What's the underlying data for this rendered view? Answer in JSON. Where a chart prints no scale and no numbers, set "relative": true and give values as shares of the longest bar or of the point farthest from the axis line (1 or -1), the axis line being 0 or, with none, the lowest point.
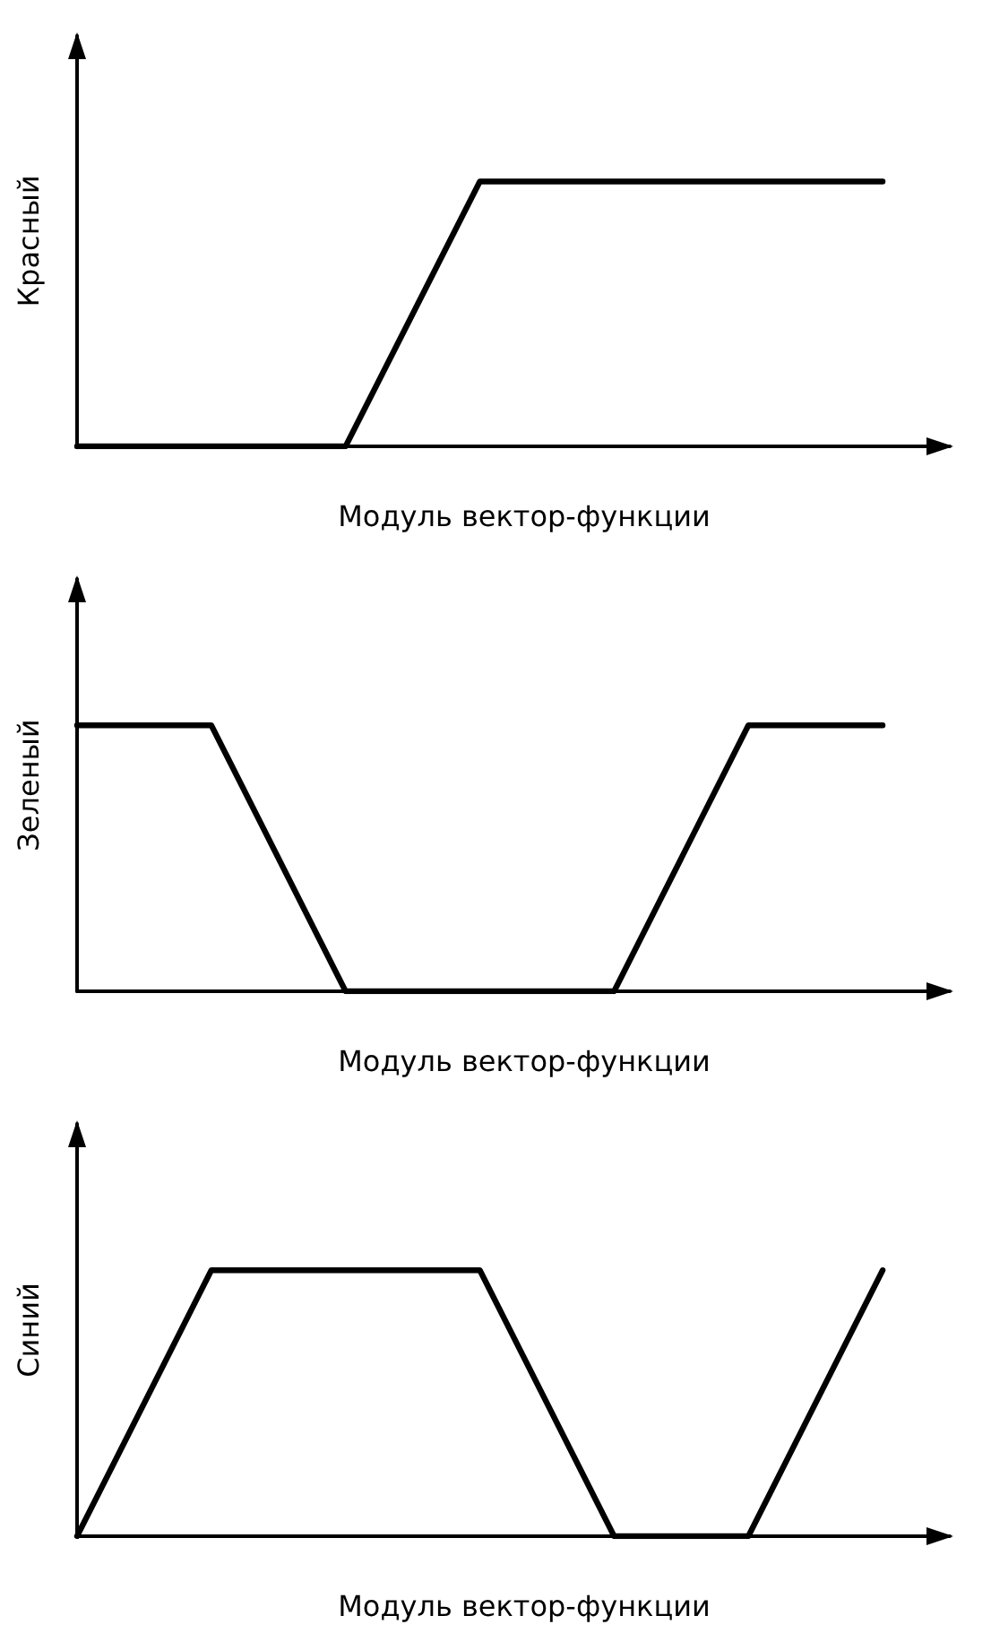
{
  "chart_data": [
    {
      "type": "line",
      "relative": true,
      "ylabel": "Красный",
      "xlabel": "Модуль вектор-функции",
      "categories": [
        null,
        null,
        null,
        null,
        null,
        null,
        null
      ],
      "series": [
        {
          "color": "#000000",
          "values": [
            0,
            0,
            0,
            1,
            1,
            1,
            1
          ]
        }
      ],
      "marker": "none",
      "grid": false
    },
    {
      "type": "line",
      "relative": true,
      "ylabel": "Зеленый",
      "xlabel": "Модуль вектор-функции",
      "categories": [
        null,
        null,
        null,
        null,
        null,
        null,
        null
      ],
      "series": [
        {
          "color": "#000000",
          "values": [
            1,
            1,
            0,
            0,
            0,
            1,
            1
          ]
        }
      ],
      "marker": "none",
      "grid": false
    },
    {
      "type": "line",
      "relative": true,
      "ylabel": "Синий",
      "xlabel": "Модуль вектор-функции",
      "categories": [
        null,
        null,
        null,
        null,
        null,
        null,
        null
      ],
      "series": [
        {
          "color": "#000000",
          "values": [
            0,
            1,
            1,
            1,
            0,
            0,
            1
          ]
        }
      ],
      "marker": "none",
      "grid": false
    }
  ]
}
